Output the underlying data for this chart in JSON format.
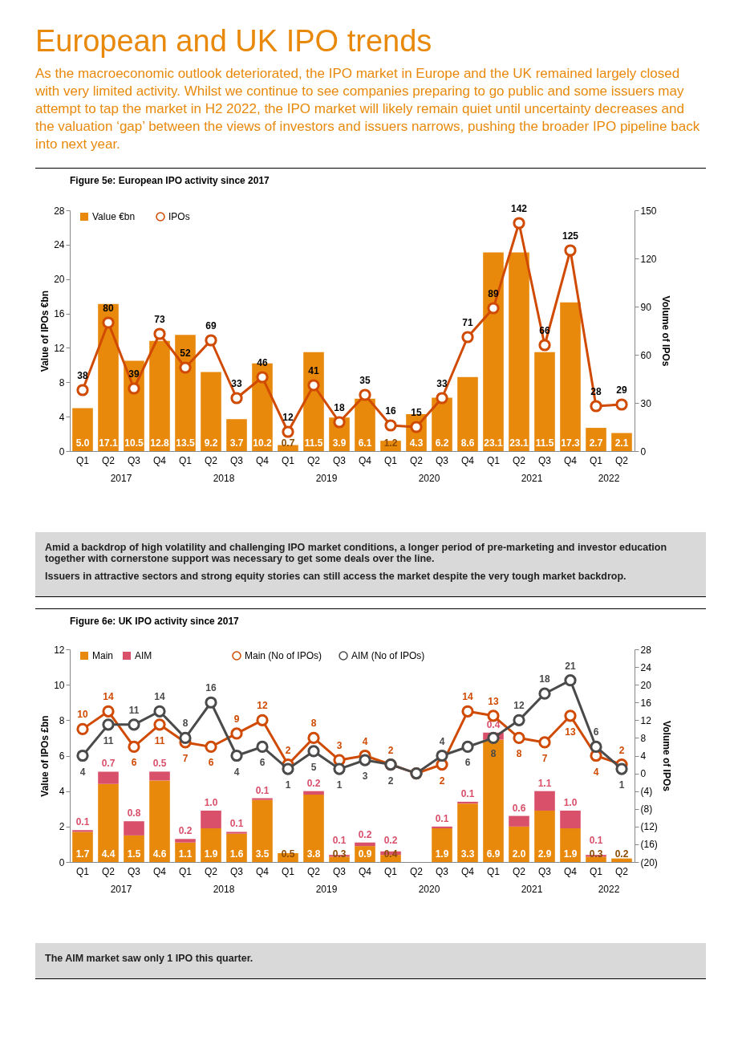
{
  "chart_data": [
    {
      "type": "bar",
      "title": "Figure 5e: European IPO activity since 2017",
      "categories": [
        "Q1",
        "Q2",
        "Q3",
        "Q4",
        "Q1",
        "Q2",
        "Q3",
        "Q4",
        "Q1",
        "Q2",
        "Q3",
        "Q4",
        "Q1",
        "Q2",
        "Q3",
        "Q4",
        "Q1",
        "Q2",
        "Q3",
        "Q4",
        "Q1",
        "Q2"
      ],
      "series": [
        {
          "name": "Value €bn",
          "color": "#e8890c",
          "values": [
            5.0,
            17.1,
            10.5,
            12.8,
            13.5,
            9.2,
            3.7,
            10.2,
            0.7,
            11.5,
            3.9,
            6.1,
            1.2,
            4.3,
            6.2,
            8.6,
            23.1,
            23.1,
            11.5,
            17.3,
            2.7,
            2.1
          ],
          "value_labels": [
            "5.0",
            "17.1",
            "10.5",
            "12.8",
            "13.5",
            "9.2",
            "3.7",
            "10.2",
            "0.7",
            "11.5",
            "3.9",
            "6.1",
            "1.2",
            "4.3",
            "6.2",
            "8.6",
            "23.1",
            "23.1",
            "11.5",
            "17.3",
            "2.7",
            "2.1"
          ]
        },
        {
          "name": "IPOs",
          "type": "line",
          "axis": "y2",
          "color": "#d04a02",
          "values": [
            38,
            80,
            39,
            73,
            52,
            69,
            33,
            46,
            12,
            41,
            18,
            35,
            16,
            15,
            33,
            71,
            89,
            142,
            66,
            125,
            28,
            29
          ],
          "value_labels": [
            "38",
            "80",
            "39",
            "73",
            "52",
            "69",
            "33",
            "46",
            "12",
            "41",
            "18",
            "35",
            "16",
            "15",
            "33",
            "71",
            "89",
            "142",
            "66",
            "125",
            "28",
            "29"
          ]
        }
      ],
      "ylabel": "Value of IPOs €bn",
      "y2label": "Volume of IPOs",
      "ylim": [
        0,
        28
      ],
      "yticks": [
        0,
        4,
        8,
        12,
        16,
        20,
        24,
        28
      ],
      "y2lim": [
        0,
        150
      ],
      "y2ticks": [
        0,
        30,
        60,
        90,
        120,
        150
      ],
      "legend": "top left",
      "marker": "circle",
      "annotations": [
        "European and UK IPO trends",
        "As the macroeconomic outlook deteriorated, the IPO market in Europe and the UK remained largely closed with very limited activity. Whilst we continue to see companies preparing to go public and some issuers may attempt to tap the market in H2 2022, the IPO market will likely remain quiet until uncertainty decreases and the valuation ‘gap’ between the views of investors and issuers narrows, pushing the broader IPO pipeline back into next year.",
        "2017",
        "2018",
        "2019",
        "2020",
        "2021",
        "2022",
        "Amid a backdrop of high volatility and challenging IPO market conditions, a longer period of pre-marketing and investor education together with cornerstone support was necessary to get some deals over the line.",
        "Issuers in attractive sectors and strong equity stories can still access the market despite the very tough market backdrop."
      ]
    },
    {
      "type": "bar",
      "title": "Figure 6e: UK IPO activity since 2017",
      "stacked": true,
      "categories": [
        "Q1",
        "Q2",
        "Q3",
        "Q4",
        "Q1",
        "Q2",
        "Q3",
        "Q4",
        "Q1",
        "Q2",
        "Q3",
        "Q4",
        "Q1",
        "Q2",
        "Q3",
        "Q4",
        "Q1",
        "Q2",
        "Q3",
        "Q4",
        "Q1",
        "Q2"
      ],
      "series": [
        {
          "name": "Main",
          "color": "#e8890c",
          "values": [
            1.7,
            4.4,
            1.5,
            4.6,
            1.1,
            1.9,
            1.6,
            3.5,
            0.5,
            3.8,
            0.3,
            0.9,
            0.4,
            null,
            1.9,
            3.3,
            6.9,
            2.0,
            2.9,
            1.9,
            0.3,
            0.2
          ],
          "value_labels": [
            "1.7",
            "4.4",
            "1.5",
            "4.6",
            "1.1",
            "1.9",
            "1.6",
            "3.5",
            "0.5",
            "3.8",
            "0.3",
            "0.9",
            "0.4",
            null,
            "1.9",
            "3.3",
            "6.9",
            "2.0",
            "2.9",
            "1.9",
            "0.3",
            "0.2"
          ]
        },
        {
          "name": "AIM",
          "color": "#d9506b",
          "values": [
            0.1,
            0.7,
            0.8,
            0.5,
            0.2,
            1.0,
            0.1,
            0.1,
            null,
            0.2,
            0.1,
            0.2,
            0.2,
            null,
            0.1,
            0.1,
            0.4,
            0.6,
            1.1,
            1.0,
            0.1,
            null
          ],
          "value_labels": [
            "0.1",
            "0.7",
            "0.8",
            "0.5",
            "0.2",
            "1.0",
            "0.1",
            "0.1",
            null,
            "0.2",
            "0.1",
            "0.2",
            "0.2",
            null,
            "0.1",
            "0.1",
            "0.4",
            "0.6",
            "1.1",
            "1.0",
            "0.1",
            null
          ]
        },
        {
          "name": "Main (No of IPOs)",
          "type": "line",
          "axis": "y2",
          "color": "#d04a02",
          "values": [
            10,
            14,
            6,
            11,
            7,
            6,
            9,
            12,
            2,
            8,
            3,
            4,
            2,
            0,
            2,
            14,
            13,
            8,
            7,
            13,
            4,
            2
          ],
          "value_labels": [
            "10",
            "14",
            "6",
            "11",
            "7",
            "6",
            "9",
            "12",
            "2",
            "8",
            "3",
            "4",
            "2",
            null,
            "2",
            "14",
            "13",
            "8",
            "7",
            "13",
            "4",
            "2"
          ]
        },
        {
          "name": "AIM (No of IPOs)",
          "type": "line",
          "axis": "y2",
          "color": "#4a4a4a",
          "values": [
            4,
            11,
            11,
            14,
            8,
            16,
            4,
            6,
            1,
            5,
            1,
            3,
            2,
            0,
            4,
            6,
            8,
            12,
            18,
            21,
            6,
            1
          ],
          "value_labels": [
            "4",
            "11",
            "11",
            "14",
            "8",
            "16",
            "4",
            "6",
            "1",
            "5",
            "1",
            "3",
            "2",
            null,
            "4",
            "6",
            "8",
            "12",
            "18",
            "21",
            "6",
            "1"
          ]
        }
      ],
      "ylabel": "Value of IPOs £bn",
      "y2label": "Volume of IPOs",
      "ylim": [
        0,
        12
      ],
      "yticks": [
        0,
        2,
        4,
        6,
        8,
        10,
        12
      ],
      "y2lim": [
        -20,
        28
      ],
      "y2ticks": [
        {
          "value": -20,
          "label": "(20)"
        },
        {
          "value": -16,
          "label": "(16)"
        },
        {
          "value": -12,
          "label": "(12)"
        },
        {
          "value": -8,
          "label": "(8)"
        },
        {
          "value": -4,
          "label": "(4)"
        },
        0,
        4,
        8,
        12,
        16,
        20,
        24,
        28
      ],
      "legend": "top left",
      "marker": "circle",
      "annotations": [
        "2017",
        "2018",
        "2019",
        "2020",
        "2021",
        "2022",
        "The AIM market saw only 1 IPO this quarter."
      ]
    }
  ]
}
